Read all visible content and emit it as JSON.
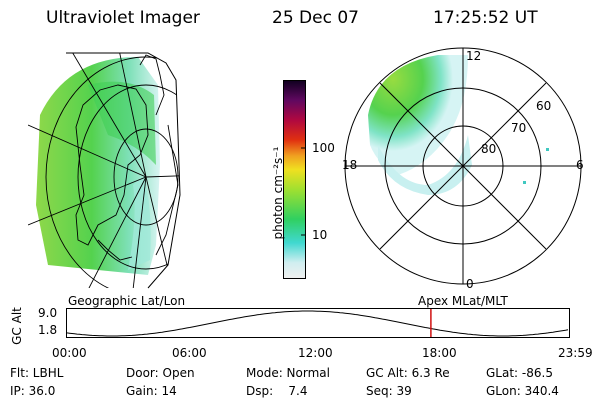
{
  "header": {
    "title": "Ultraviolet Imager",
    "date": "25 Dec 07",
    "time": "17:25:52 UT"
  },
  "colorbar": {
    "unit_label": "photon cm⁻²s⁻¹",
    "tick_100": "100",
    "tick_10": "10"
  },
  "polar_plot": {
    "label_top": "12",
    "label_bottom": "0",
    "label_left": "18",
    "label_right": "6",
    "ring_60": "60",
    "ring_70": "70",
    "ring_80": "80"
  },
  "timeline": {
    "left_caption": "Geographic Lat/Lon",
    "right_caption": "Apex MLat/MLT",
    "axis_title": "GC Alt",
    "y_top": "9.0",
    "y_bottom": "1.8",
    "ticks": [
      "00:00",
      "06:00",
      "12:00",
      "18:00",
      "23:59"
    ],
    "current_time_fraction": 0.7263
  },
  "status": {
    "row1": [
      {
        "key": "flt",
        "text": "Flt: LBHL"
      },
      {
        "key": "door",
        "text": "Door: Open"
      },
      {
        "key": "mode",
        "text": "Mode: Normal"
      },
      {
        "key": "gcalt",
        "text": "GC Alt: 6.3 Re"
      },
      {
        "key": "glat",
        "text": "GLat: -86.5"
      }
    ],
    "row2": [
      {
        "key": "ip",
        "text": "IP: 36.0"
      },
      {
        "key": "gain",
        "text": "Gain: 14"
      },
      {
        "key": "dsp",
        "text": "Dsp:    7.4"
      },
      {
        "key": "seq",
        "text": "Seq: 39"
      },
      {
        "key": "glon",
        "text": "GLon: 340.4"
      }
    ]
  },
  "colors": {
    "auroral_green": "#5ad84a",
    "auroral_yellowgreen": "#a8e040",
    "auroral_cyan": "#63dcd0",
    "marker_red": "#d01010"
  }
}
